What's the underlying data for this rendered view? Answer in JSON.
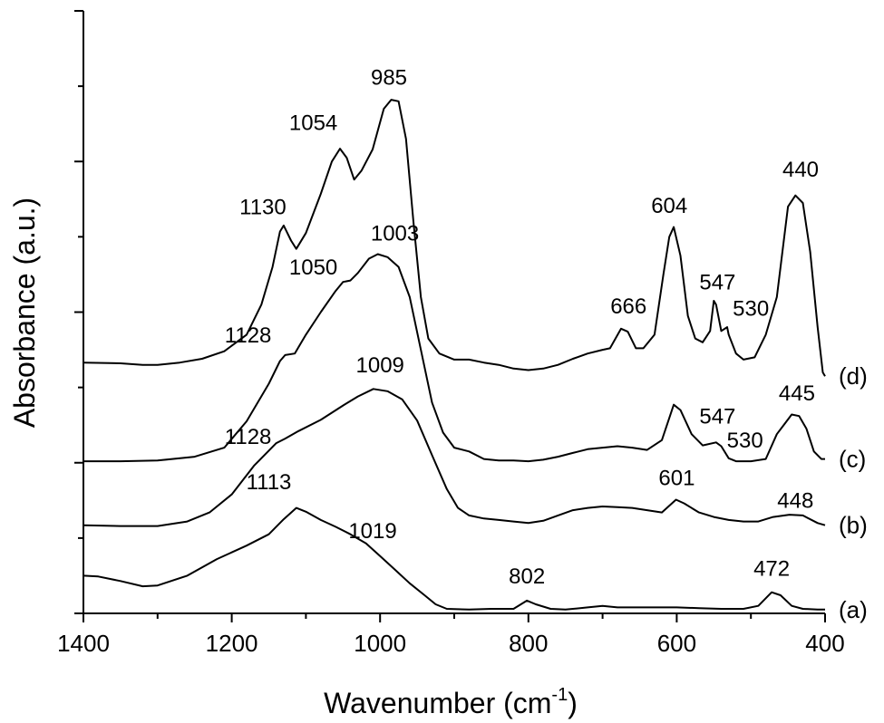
{
  "chart_data": {
    "type": "line",
    "title": "",
    "xlabel": "Wavenumber (cm",
    "xlabel_sup": "-1",
    "xlabel_end": ")",
    "ylabel": "Absorbance (a.u.)",
    "x_reversed": true,
    "xlim": [
      400,
      1400
    ],
    "ylim": [
      0,
      8
    ],
    "xticks": [
      1400,
      1200,
      1000,
      800,
      600,
      400
    ],
    "y_tick_labels": false,
    "grid": false,
    "legend": "none",
    "line_color": "#000000",
    "series": [
      {
        "name": "(a)",
        "points": [
          [
            1400,
            0.5
          ],
          [
            1380,
            0.49
          ],
          [
            1350,
            0.43
          ],
          [
            1320,
            0.36
          ],
          [
            1300,
            0.37
          ],
          [
            1260,
            0.5
          ],
          [
            1220,
            0.72
          ],
          [
            1180,
            0.9
          ],
          [
            1150,
            1.05
          ],
          [
            1130,
            1.25
          ],
          [
            1113,
            1.4
          ],
          [
            1100,
            1.35
          ],
          [
            1080,
            1.24
          ],
          [
            1060,
            1.15
          ],
          [
            1040,
            1.05
          ],
          [
            1019,
            0.93
          ],
          [
            1000,
            0.76
          ],
          [
            980,
            0.58
          ],
          [
            960,
            0.4
          ],
          [
            940,
            0.24
          ],
          [
            925,
            0.12
          ],
          [
            910,
            0.06
          ],
          [
            880,
            0.05
          ],
          [
            850,
            0.06
          ],
          [
            820,
            0.06
          ],
          [
            802,
            0.17
          ],
          [
            790,
            0.12
          ],
          [
            770,
            0.06
          ],
          [
            750,
            0.05
          ],
          [
            720,
            0.08
          ],
          [
            700,
            0.1
          ],
          [
            680,
            0.08
          ],
          [
            650,
            0.08
          ],
          [
            620,
            0.08
          ],
          [
            600,
            0.08
          ],
          [
            570,
            0.07
          ],
          [
            540,
            0.06
          ],
          [
            510,
            0.06
          ],
          [
            490,
            0.1
          ],
          [
            472,
            0.28
          ],
          [
            460,
            0.24
          ],
          [
            445,
            0.1
          ],
          [
            430,
            0.06
          ],
          [
            410,
            0.05
          ],
          [
            400,
            0.05
          ]
        ]
      },
      {
        "name": "(b)",
        "points": [
          [
            1400,
            1.17
          ],
          [
            1350,
            1.16
          ],
          [
            1300,
            1.16
          ],
          [
            1260,
            1.22
          ],
          [
            1230,
            1.34
          ],
          [
            1200,
            1.58
          ],
          [
            1170,
            1.96
          ],
          [
            1140,
            2.26
          ],
          [
            1128,
            2.32
          ],
          [
            1110,
            2.42
          ],
          [
            1080,
            2.57
          ],
          [
            1050,
            2.76
          ],
          [
            1030,
            2.88
          ],
          [
            1009,
            2.98
          ],
          [
            990,
            2.95
          ],
          [
            970,
            2.84
          ],
          [
            950,
            2.56
          ],
          [
            930,
            2.1
          ],
          [
            910,
            1.65
          ],
          [
            895,
            1.4
          ],
          [
            880,
            1.3
          ],
          [
            860,
            1.26
          ],
          [
            840,
            1.24
          ],
          [
            820,
            1.22
          ],
          [
            800,
            1.2
          ],
          [
            780,
            1.23
          ],
          [
            760,
            1.3
          ],
          [
            740,
            1.37
          ],
          [
            720,
            1.4
          ],
          [
            700,
            1.42
          ],
          [
            680,
            1.41
          ],
          [
            660,
            1.4
          ],
          [
            640,
            1.37
          ],
          [
            620,
            1.34
          ],
          [
            601,
            1.51
          ],
          [
            590,
            1.46
          ],
          [
            570,
            1.34
          ],
          [
            550,
            1.28
          ],
          [
            530,
            1.24
          ],
          [
            510,
            1.22
          ],
          [
            490,
            1.22
          ],
          [
            470,
            1.28
          ],
          [
            448,
            1.31
          ],
          [
            430,
            1.3
          ],
          [
            410,
            1.2
          ],
          [
            400,
            1.17
          ]
        ]
      },
      {
        "name": "(c)",
        "points": [
          [
            1400,
            2.02
          ],
          [
            1350,
            2.02
          ],
          [
            1300,
            2.03
          ],
          [
            1250,
            2.08
          ],
          [
            1210,
            2.2
          ],
          [
            1180,
            2.55
          ],
          [
            1150,
            3.05
          ],
          [
            1135,
            3.35
          ],
          [
            1128,
            3.43
          ],
          [
            1115,
            3.45
          ],
          [
            1100,
            3.7
          ],
          [
            1080,
            4.0
          ],
          [
            1060,
            4.28
          ],
          [
            1050,
            4.4
          ],
          [
            1040,
            4.42
          ],
          [
            1030,
            4.52
          ],
          [
            1015,
            4.71
          ],
          [
            1003,
            4.77
          ],
          [
            990,
            4.73
          ],
          [
            975,
            4.6
          ],
          [
            960,
            4.2
          ],
          [
            945,
            3.5
          ],
          [
            930,
            2.8
          ],
          [
            915,
            2.4
          ],
          [
            900,
            2.2
          ],
          [
            880,
            2.15
          ],
          [
            860,
            2.05
          ],
          [
            840,
            2.03
          ],
          [
            820,
            2.03
          ],
          [
            800,
            2.02
          ],
          [
            780,
            2.04
          ],
          [
            760,
            2.08
          ],
          [
            740,
            2.13
          ],
          [
            720,
            2.18
          ],
          [
            700,
            2.2
          ],
          [
            680,
            2.22
          ],
          [
            660,
            2.2
          ],
          [
            640,
            2.17
          ],
          [
            620,
            2.3
          ],
          [
            604,
            2.77
          ],
          [
            595,
            2.7
          ],
          [
            580,
            2.38
          ],
          [
            565,
            2.23
          ],
          [
            547,
            2.27
          ],
          [
            540,
            2.22
          ],
          [
            530,
            2.06
          ],
          [
            520,
            2.02
          ],
          [
            500,
            2.02
          ],
          [
            480,
            2.05
          ],
          [
            465,
            2.38
          ],
          [
            455,
            2.51
          ],
          [
            445,
            2.64
          ],
          [
            435,
            2.62
          ],
          [
            425,
            2.45
          ],
          [
            415,
            2.15
          ],
          [
            405,
            2.05
          ],
          [
            400,
            2.05
          ]
        ]
      },
      {
        "name": "(d)",
        "points": [
          [
            1400,
            3.33
          ],
          [
            1350,
            3.32
          ],
          [
            1320,
            3.3
          ],
          [
            1300,
            3.3
          ],
          [
            1270,
            3.33
          ],
          [
            1240,
            3.38
          ],
          [
            1210,
            3.48
          ],
          [
            1180,
            3.7
          ],
          [
            1160,
            4.1
          ],
          [
            1145,
            4.6
          ],
          [
            1135,
            5.07
          ],
          [
            1130,
            5.15
          ],
          [
            1120,
            4.95
          ],
          [
            1113,
            4.84
          ],
          [
            1100,
            5.05
          ],
          [
            1080,
            5.57
          ],
          [
            1065,
            6.0
          ],
          [
            1054,
            6.17
          ],
          [
            1045,
            6.05
          ],
          [
            1035,
            5.76
          ],
          [
            1025,
            5.88
          ],
          [
            1010,
            6.16
          ],
          [
            995,
            6.7
          ],
          [
            985,
            6.82
          ],
          [
            975,
            6.8
          ],
          [
            965,
            6.3
          ],
          [
            955,
            5.2
          ],
          [
            945,
            4.2
          ],
          [
            935,
            3.65
          ],
          [
            920,
            3.45
          ],
          [
            900,
            3.37
          ],
          [
            880,
            3.37
          ],
          [
            860,
            3.33
          ],
          [
            840,
            3.3
          ],
          [
            820,
            3.25
          ],
          [
            800,
            3.23
          ],
          [
            780,
            3.25
          ],
          [
            760,
            3.3
          ],
          [
            740,
            3.38
          ],
          [
            720,
            3.45
          ],
          [
            700,
            3.5
          ],
          [
            690,
            3.52
          ],
          [
            675,
            3.78
          ],
          [
            666,
            3.74
          ],
          [
            655,
            3.52
          ],
          [
            645,
            3.52
          ],
          [
            630,
            3.7
          ],
          [
            618,
            4.5
          ],
          [
            610,
            5.0
          ],
          [
            604,
            5.13
          ],
          [
            595,
            4.75
          ],
          [
            585,
            3.95
          ],
          [
            575,
            3.65
          ],
          [
            565,
            3.6
          ],
          [
            555,
            3.75
          ],
          [
            550,
            4.15
          ],
          [
            547,
            4.1
          ],
          [
            540,
            3.75
          ],
          [
            532,
            3.8
          ],
          [
            530,
            3.7
          ],
          [
            520,
            3.45
          ],
          [
            510,
            3.37
          ],
          [
            495,
            3.4
          ],
          [
            480,
            3.7
          ],
          [
            465,
            4.2
          ],
          [
            450,
            5.4
          ],
          [
            440,
            5.55
          ],
          [
            430,
            5.45
          ],
          [
            420,
            4.8
          ],
          [
            410,
            3.8
          ],
          [
            403,
            3.2
          ],
          [
            400,
            3.15
          ]
        ]
      }
    ],
    "annotations": [
      {
        "text": "802",
        "x": 802,
        "y": 0.4
      },
      {
        "text": "472",
        "x": 472,
        "y": 0.5
      },
      {
        "text": "1113",
        "x": 1150,
        "y": 1.65
      },
      {
        "text": "1019",
        "x": 1010,
        "y": 1.0
      },
      {
        "text": "1009",
        "x": 1000,
        "y": 3.2
      },
      {
        "text": "1128",
        "x": 1178,
        "y": 2.25
      },
      {
        "text": "601",
        "x": 600,
        "y": 1.7
      },
      {
        "text": "448",
        "x": 440,
        "y": 1.4
      },
      {
        "text": "1128",
        "x": 1178,
        "y": 3.6
      },
      {
        "text": "1050",
        "x": 1090,
        "y": 4.5
      },
      {
        "text": "1003",
        "x": 980,
        "y": 4.95
      },
      {
        "text": "547",
        "x": 545,
        "y": 2.52
      },
      {
        "text": "530",
        "x": 508,
        "y": 2.2
      },
      {
        "text": "445",
        "x": 438,
        "y": 2.83
      },
      {
        "text": "666",
        "x": 665,
        "y": 3.98
      },
      {
        "text": "604",
        "x": 610,
        "y": 5.32
      },
      {
        "text": "547",
        "x": 545,
        "y": 4.3
      },
      {
        "text": "530",
        "x": 500,
        "y": 3.95
      },
      {
        "text": "440",
        "x": 433,
        "y": 5.8
      },
      {
        "text": "1130",
        "x": 1158,
        "y": 5.3
      },
      {
        "text": "1054",
        "x": 1090,
        "y": 6.42
      },
      {
        "text": "985",
        "x": 988,
        "y": 7.02
      }
    ]
  }
}
